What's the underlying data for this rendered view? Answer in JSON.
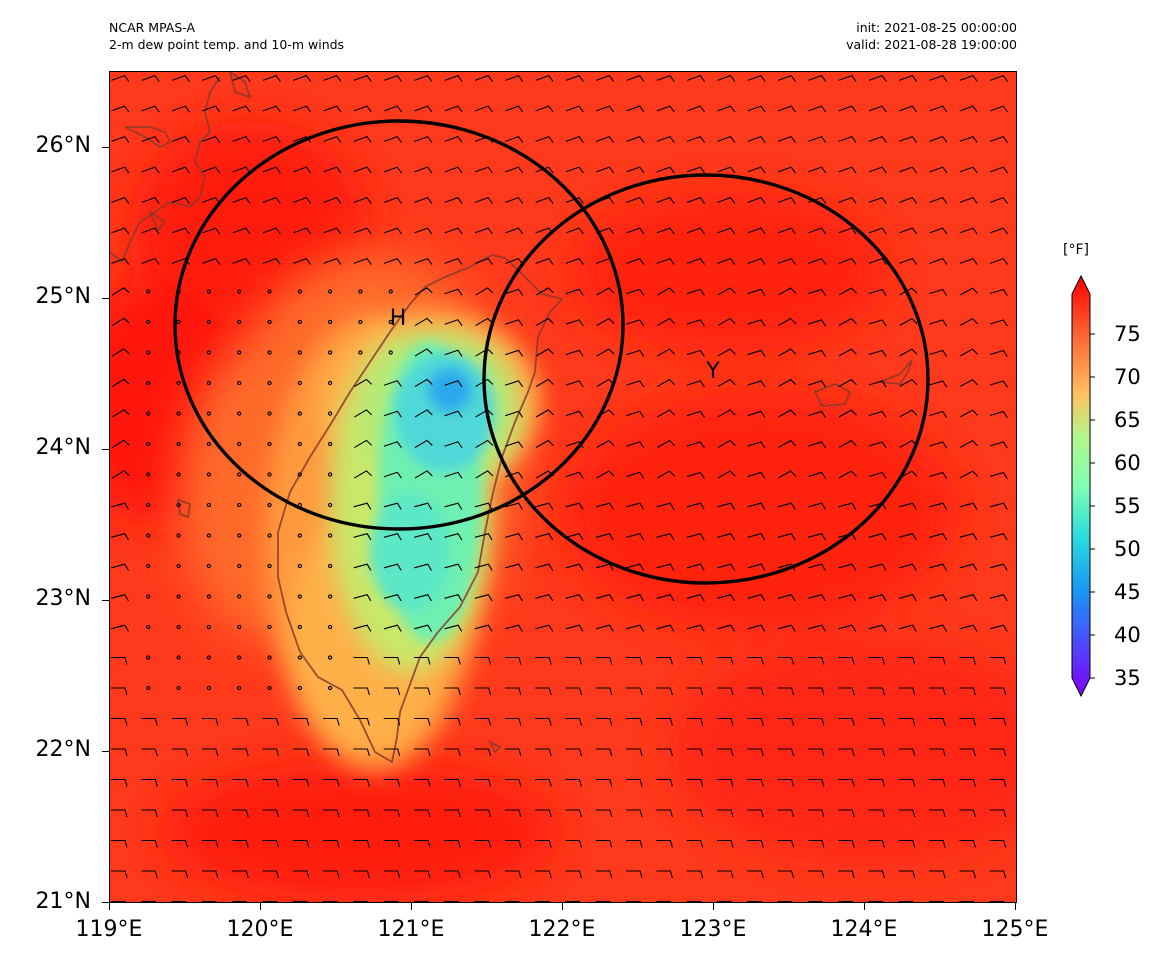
{
  "header": {
    "model": "NCAR MPAS-A",
    "field": "2-m dew point temp. and 10-m winds",
    "init": "init: 2021-08-25 00:00:00",
    "valid": "valid: 2021-08-28 19:00:00"
  },
  "map": {
    "lat_range": [
      21,
      26.5
    ],
    "lon_range": [
      119,
      125
    ],
    "lat_ticks": [
      "21°N",
      "22°N",
      "23°N",
      "24°N",
      "25°N",
      "26°N"
    ],
    "lon_ticks": [
      "119°E",
      "120°E",
      "121°E",
      "122°E",
      "123°E",
      "124°E",
      "125°E"
    ],
    "markers": [
      {
        "label": "H",
        "lat": 24.9,
        "lon": 120.95
      },
      {
        "label": "Y",
        "lat": 24.55,
        "lon": 122.9
      }
    ],
    "circles": [
      {
        "center_lat": 24.83,
        "center_lon": 120.94,
        "radius_deg_lat": 1.35
      },
      {
        "center_lat": 24.47,
        "center_lon": 122.94,
        "radius_deg_lat": 1.35
      }
    ],
    "field_description_colors": {
      "ocean": "#ff2d14",
      "warm_land": "#ff9a3c",
      "cool_interior": "#5cf0b8",
      "coldest": "#1b9de8"
    }
  },
  "colorbar": {
    "unit": "[°F]",
    "min": 35,
    "max": 78,
    "labels": [
      "35",
      "40",
      "45",
      "50",
      "55",
      "60",
      "65",
      "70",
      "75"
    ],
    "colormap": "rainbow"
  }
}
